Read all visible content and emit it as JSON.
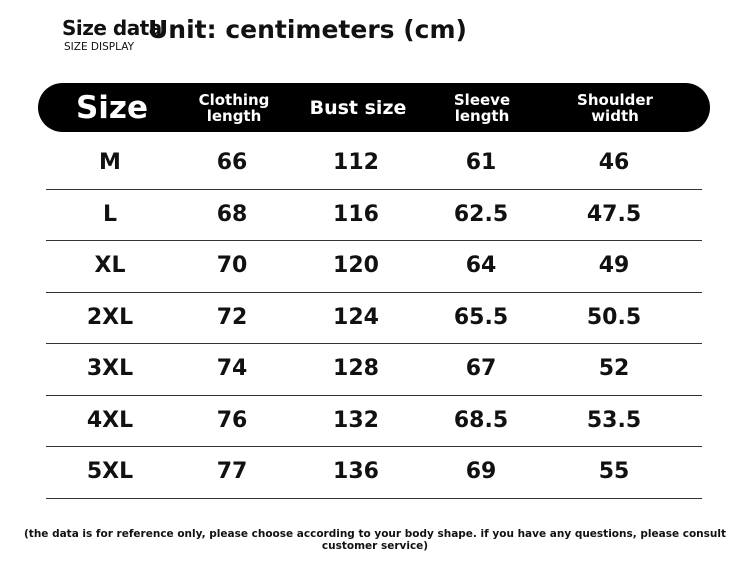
{
  "header": {
    "title": "Size data",
    "subtitle": "SIZE DISPLAY",
    "unit": "Unit: centimeters (cm)"
  },
  "table": {
    "columns": [
      "Size",
      "Clothing length",
      "Bust size",
      "Sleeve length",
      "Shoulder width"
    ],
    "rows": [
      [
        "M",
        "66",
        "112",
        "61",
        "46"
      ],
      [
        "L",
        "68",
        "116",
        "62.5",
        "47.5"
      ],
      [
        "XL",
        "70",
        "120",
        "64",
        "49"
      ],
      [
        "2XL",
        "72",
        "124",
        "65.5",
        "50.5"
      ],
      [
        "3XL",
        "74",
        "128",
        "67",
        "52"
      ],
      [
        "4XL",
        "76",
        "132",
        "68.5",
        "53.5"
      ],
      [
        "5XL",
        "77",
        "136",
        "69",
        "55"
      ]
    ]
  },
  "footer": {
    "note": "(the data is for reference only, please choose according to your body shape. if you have any questions, please consult customer service)"
  },
  "colors": {
    "header_bg": "#000000",
    "header_text": "#ffffff",
    "text": "#111111"
  }
}
